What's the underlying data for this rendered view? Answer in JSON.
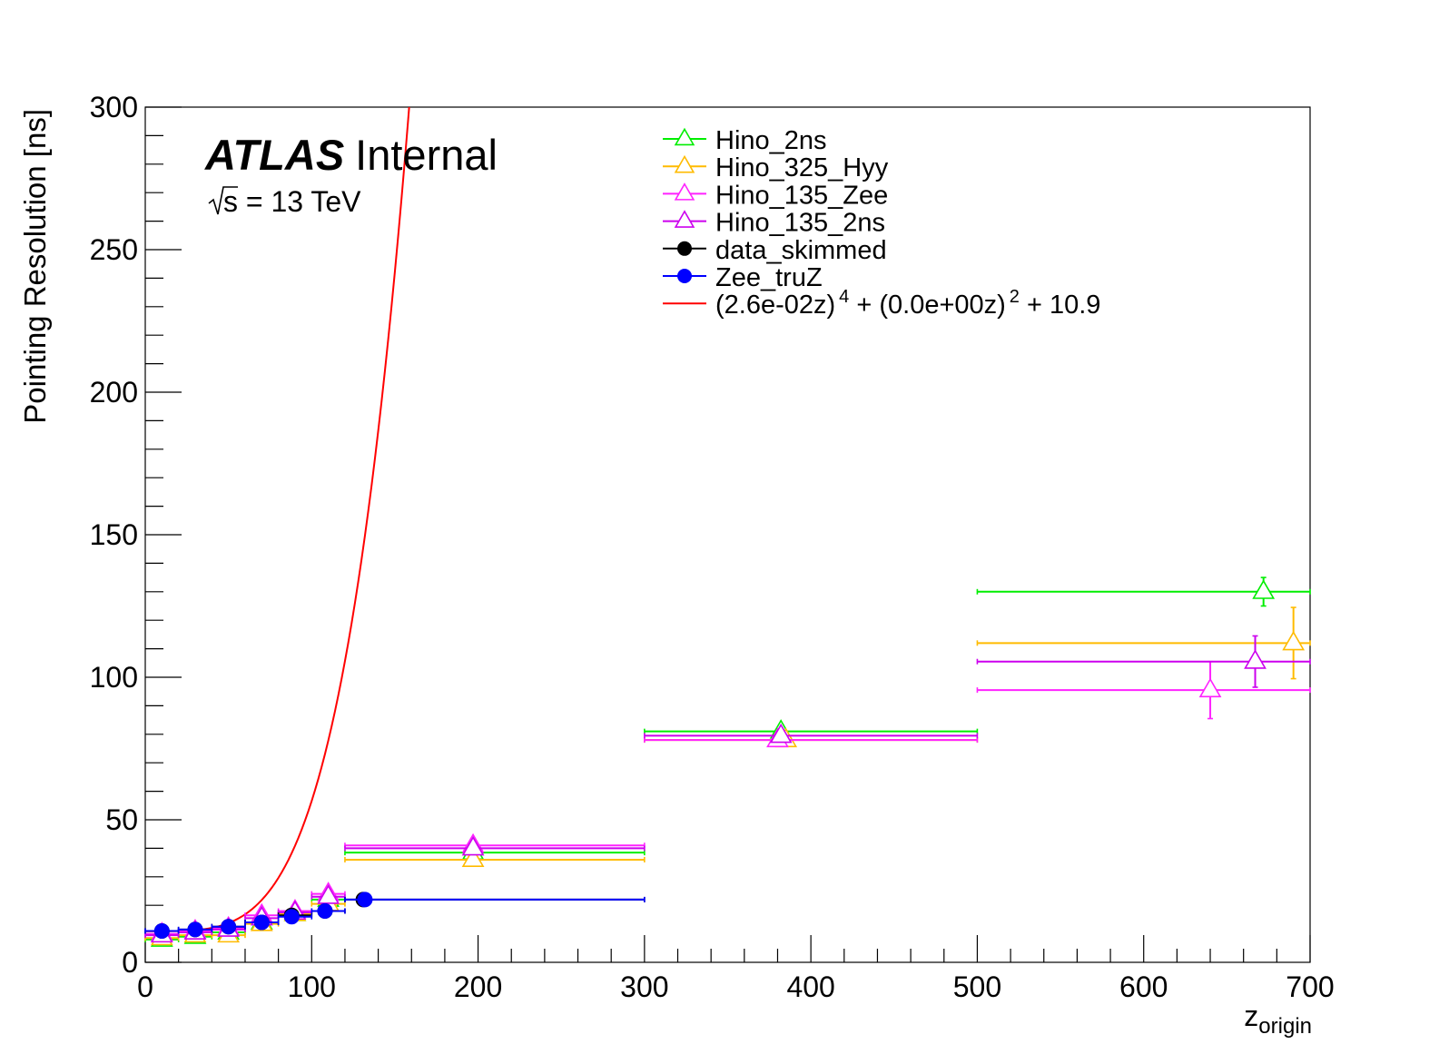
{
  "chart_data": {
    "type": "scatter",
    "experiment": "ATLAS",
    "status": "Internal",
    "energy_prefix": "s",
    "energy_suffix": " = 13 TeV",
    "xlabel_main": "z",
    "xlabel_sub": "origin",
    "ylabel": "Pointing Resolution [ns]",
    "xlim": [
      0,
      700
    ],
    "ylim": [
      0,
      300
    ],
    "xticks": [
      0,
      100,
      200,
      300,
      400,
      500,
      600,
      700
    ],
    "yticks": [
      0,
      50,
      100,
      150,
      200,
      250,
      300
    ],
    "grid": false,
    "legend_position": "top-center",
    "series": [
      {
        "name": "Hino_2ns",
        "color": "#00ee00",
        "marker": "open-triangle",
        "points": [
          {
            "x": 10,
            "xlo": 0,
            "xhi": 20,
            "y": 8,
            "yerr": 1
          },
          {
            "x": 30,
            "xlo": 20,
            "xhi": 40,
            "y": 9,
            "yerr": 1
          },
          {
            "x": 50,
            "xlo": 40,
            "xhi": 60,
            "y": 10.5,
            "yerr": 1
          },
          {
            "x": 70,
            "xlo": 60,
            "xhi": 80,
            "y": 14,
            "yerr": 1
          },
          {
            "x": 90,
            "xlo": 80,
            "xhi": 100,
            "y": 17,
            "yerr": 1
          },
          {
            "x": 110,
            "xlo": 100,
            "xhi": 120,
            "y": 22,
            "yerr": 1
          },
          {
            "x": 197,
            "xlo": 120,
            "xhi": 300,
            "y": 38.5,
            "yerr": 1
          },
          {
            "x": 382,
            "xlo": 300,
            "xhi": 500,
            "y": 81,
            "yerr": 1.5
          },
          {
            "x": 672,
            "xlo": 500,
            "xhi": 700,
            "y": 130,
            "yerr": 5
          }
        ]
      },
      {
        "name": "Hino_325_Hyy",
        "color": "#ffbb00",
        "marker": "open-triangle",
        "points": [
          {
            "x": 10,
            "xlo": 0,
            "xhi": 20,
            "y": 8.5,
            "yerr": 1
          },
          {
            "x": 30,
            "xlo": 20,
            "xhi": 40,
            "y": 9.5,
            "yerr": 1
          },
          {
            "x": 50,
            "xlo": 40,
            "xhi": 60,
            "y": 9.5,
            "yerr": 1
          },
          {
            "x": 70,
            "xlo": 60,
            "xhi": 80,
            "y": 13.5,
            "yerr": 1
          },
          {
            "x": 90,
            "xlo": 80,
            "xhi": 100,
            "y": 17,
            "yerr": 1
          },
          {
            "x": 110,
            "xlo": 100,
            "xhi": 120,
            "y": 20.5,
            "yerr": 1
          },
          {
            "x": 197,
            "xlo": 120,
            "xhi": 300,
            "y": 36,
            "yerr": 1.5
          },
          {
            "x": 385,
            "xlo": 300,
            "xhi": 500,
            "y": 78,
            "yerr": 1.5
          },
          {
            "x": 690,
            "xlo": 500,
            "xhi": 700,
            "y": 112,
            "yerr": 12.5
          }
        ]
      },
      {
        "name": "Hino_135_Zee",
        "color": "#ff22ff",
        "marker": "open-triangle",
        "points": [
          {
            "x": 10,
            "xlo": 0,
            "xhi": 20,
            "y": 10,
            "yerr": 1
          },
          {
            "x": 30,
            "xlo": 20,
            "xhi": 40,
            "y": 11,
            "yerr": 1
          },
          {
            "x": 50,
            "xlo": 40,
            "xhi": 60,
            "y": 12,
            "yerr": 1
          },
          {
            "x": 70,
            "xlo": 60,
            "xhi": 80,
            "y": 16.5,
            "yerr": 1
          },
          {
            "x": 90,
            "xlo": 80,
            "xhi": 100,
            "y": 18,
            "yerr": 1
          },
          {
            "x": 110,
            "xlo": 100,
            "xhi": 120,
            "y": 24,
            "yerr": 1
          },
          {
            "x": 197,
            "xlo": 120,
            "xhi": 300,
            "y": 41,
            "yerr": 1.5
          },
          {
            "x": 380,
            "xlo": 300,
            "xhi": 500,
            "y": 78,
            "yerr": 1.5
          },
          {
            "x": 640,
            "xlo": 500,
            "xhi": 700,
            "y": 95.5,
            "yerr": 10
          }
        ]
      },
      {
        "name": "Hino_135_2ns",
        "color": "#cc00ee",
        "marker": "open-triangle",
        "points": [
          {
            "x": 10,
            "xlo": 0,
            "xhi": 20,
            "y": 9.5,
            "yerr": 1
          },
          {
            "x": 30,
            "xlo": 20,
            "xhi": 40,
            "y": 10.5,
            "yerr": 1
          },
          {
            "x": 50,
            "xlo": 40,
            "xhi": 60,
            "y": 11.5,
            "yerr": 1
          },
          {
            "x": 70,
            "xlo": 60,
            "xhi": 80,
            "y": 15.5,
            "yerr": 1
          },
          {
            "x": 90,
            "xlo": 80,
            "xhi": 100,
            "y": 17.5,
            "yerr": 1
          },
          {
            "x": 110,
            "xlo": 100,
            "xhi": 120,
            "y": 23,
            "yerr": 1
          },
          {
            "x": 197,
            "xlo": 120,
            "xhi": 300,
            "y": 40,
            "yerr": 1.5
          },
          {
            "x": 382,
            "xlo": 300,
            "xhi": 500,
            "y": 79.5,
            "yerr": 1.5
          },
          {
            "x": 667,
            "xlo": 500,
            "xhi": 700,
            "y": 105.5,
            "yerr": 9
          }
        ]
      },
      {
        "name": "data_skimmed",
        "color": "#000000",
        "marker": "filled-circle",
        "points": [
          {
            "x": 10,
            "xlo": 0,
            "xhi": 20,
            "y": 11,
            "yerr": 0.3
          },
          {
            "x": 30,
            "xlo": 20,
            "xhi": 40,
            "y": 11.5,
            "yerr": 0.3
          },
          {
            "x": 50,
            "xlo": 40,
            "xhi": 60,
            "y": 12.5,
            "yerr": 0.3
          },
          {
            "x": 70,
            "xlo": 60,
            "xhi": 80,
            "y": 14,
            "yerr": 0.3
          },
          {
            "x": 88,
            "xlo": 80,
            "xhi": 100,
            "y": 16.5,
            "yerr": 0.3
          },
          {
            "x": 108,
            "xlo": 100,
            "xhi": 120,
            "y": 18,
            "yerr": 0.3
          },
          {
            "x": 131,
            "xlo": 120,
            "xhi": 300,
            "y": 22,
            "yerr": 0.3
          }
        ]
      },
      {
        "name": "Zee_truZ",
        "color": "#0000ff",
        "marker": "filled-circle",
        "points": [
          {
            "x": 10,
            "xlo": 0,
            "xhi": 20,
            "y": 11,
            "yerr": 0.3
          },
          {
            "x": 30,
            "xlo": 20,
            "xhi": 40,
            "y": 11.5,
            "yerr": 0.3
          },
          {
            "x": 50,
            "xlo": 40,
            "xhi": 60,
            "y": 12.5,
            "yerr": 0.3
          },
          {
            "x": 70,
            "xlo": 60,
            "xhi": 80,
            "y": 14,
            "yerr": 0.3
          },
          {
            "x": 88,
            "xlo": 80,
            "xhi": 100,
            "y": 16,
            "yerr": 0.3
          },
          {
            "x": 108,
            "xlo": 100,
            "xhi": 120,
            "y": 18,
            "yerr": 0.3
          },
          {
            "x": 132,
            "xlo": 120,
            "xhi": 300,
            "y": 22,
            "yerr": 0.3
          }
        ]
      }
    ],
    "fit": {
      "color": "#ff0000",
      "legend_parts": [
        "(2.6e-02z)",
        "4",
        " + (0.0e+00z)",
        "2",
        " + 10.9"
      ],
      "a": 0.026,
      "b": 0.0,
      "c": 10.9
    }
  }
}
